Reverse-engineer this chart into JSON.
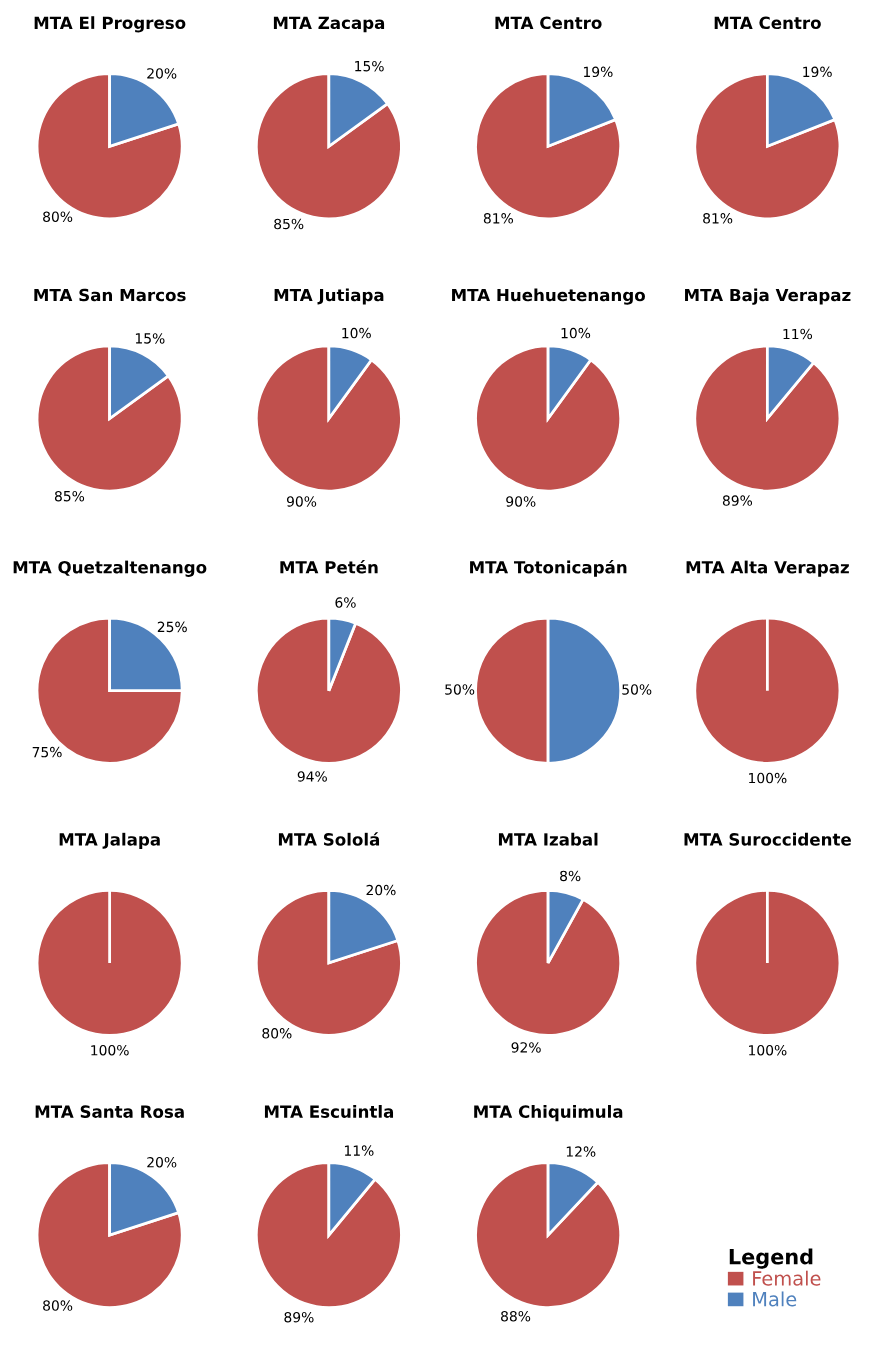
{
  "chart_data": [
    {
      "type": "pie",
      "title": "MTA El Progreso",
      "categories": [
        "Female",
        "Male"
      ],
      "values": [
        80,
        20
      ],
      "colors": [
        "#c0504d",
        "#4f81bd"
      ],
      "value_labels": [
        "80%",
        "20%"
      ],
      "legend": "bottom right",
      "legend_title": "Legend"
    },
    {
      "type": "pie",
      "title": "MTA Zacapa",
      "categories": [
        null,
        null
      ],
      "values": [
        85,
        15
      ],
      "colors": [
        "#c0504d",
        "#4f81bd"
      ],
      "value_labels": [
        "85%",
        "15%"
      ]
    },
    {
      "type": "pie",
      "title": "MTA Centro",
      "categories": [
        null,
        null
      ],
      "values": [
        81,
        19
      ],
      "colors": [
        "#c0504d",
        "#4f81bd"
      ],
      "value_labels": [
        "81%",
        "19%"
      ]
    },
    {
      "type": "pie",
      "title": "MTA Centro",
      "categories": [
        null,
        null
      ],
      "values": [
        81,
        19
      ],
      "colors": [
        "#c0504d",
        "#4f81bd"
      ],
      "value_labels": [
        "81%",
        "19%"
      ]
    },
    {
      "type": "pie",
      "title": "MTA San Marcos",
      "categories": [
        null,
        null
      ],
      "values": [
        85,
        15
      ],
      "colors": [
        "#c0504d",
        "#4f81bd"
      ],
      "value_labels": [
        "85%",
        "15%"
      ]
    },
    {
      "type": "pie",
      "title": "MTA Jutiapa",
      "categories": [
        null,
        null
      ],
      "values": [
        90,
        10
      ],
      "colors": [
        "#c0504d",
        "#4f81bd"
      ],
      "value_labels": [
        "90%",
        "10%"
      ]
    },
    {
      "type": "pie",
      "title": "MTA Huehuetenango",
      "categories": [
        null,
        null
      ],
      "values": [
        90,
        10
      ],
      "colors": [
        "#c0504d",
        "#4f81bd"
      ],
      "value_labels": [
        "90%",
        "10%"
      ]
    },
    {
      "type": "pie",
      "title": "MTA Baja Verapaz",
      "categories": [
        null,
        null
      ],
      "values": [
        89,
        11
      ],
      "colors": [
        "#c0504d",
        "#4f81bd"
      ],
      "value_labels": [
        "89%",
        "11%"
      ]
    },
    {
      "type": "pie",
      "title": "MTA Quetzaltenango",
      "categories": [
        null,
        null
      ],
      "values": [
        75,
        25
      ],
      "colors": [
        "#c0504d",
        "#4f81bd"
      ],
      "value_labels": [
        "75%",
        "25%"
      ]
    },
    {
      "type": "pie",
      "title": "MTA Petén",
      "categories": [
        null,
        null
      ],
      "values": [
        94,
        6
      ],
      "colors": [
        "#c0504d",
        "#4f81bd"
      ],
      "value_labels": [
        "94%",
        "6%"
      ]
    },
    {
      "type": "pie",
      "title": "MTA Totonicapán",
      "categories": [
        null,
        null
      ],
      "values": [
        50,
        50
      ],
      "colors": [
        "#c0504d",
        "#4f81bd"
      ],
      "value_labels": [
        "50%",
        "50%"
      ]
    },
    {
      "type": "pie",
      "title": "MTA Alta Verapaz",
      "categories": [
        null,
        null
      ],
      "values": [
        100,
        0
      ],
      "colors": [
        "#c0504d",
        "#4f81bd"
      ],
      "value_labels": [
        "100%",
        null
      ]
    },
    {
      "type": "pie",
      "title": "MTA Jalapa",
      "categories": [
        null,
        null
      ],
      "values": [
        100,
        0
      ],
      "colors": [
        "#c0504d",
        "#4f81bd"
      ],
      "value_labels": [
        "100%",
        null
      ]
    },
    {
      "type": "pie",
      "title": "MTA Sololá",
      "categories": [
        null,
        null
      ],
      "values": [
        80,
        20
      ],
      "colors": [
        "#c0504d",
        "#4f81bd"
      ],
      "value_labels": [
        "80%",
        "20%"
      ]
    },
    {
      "type": "pie",
      "title": "MTA Izabal",
      "categories": [
        null,
        null
      ],
      "values": [
        92,
        8
      ],
      "colors": [
        "#c0504d",
        "#4f81bd"
      ],
      "value_labels": [
        "92%",
        "8%"
      ]
    },
    {
      "type": "pie",
      "title": "MTA Suroccidente",
      "categories": [
        null,
        null
      ],
      "values": [
        100,
        0
      ],
      "colors": [
        "#c0504d",
        "#4f81bd"
      ],
      "value_labels": [
        "100%",
        null
      ]
    },
    {
      "type": "pie",
      "title": "MTA Santa Rosa",
      "categories": [
        null,
        null
      ],
      "values": [
        80,
        20
      ],
      "colors": [
        "#c0504d",
        "#4f81bd"
      ],
      "value_labels": [
        "80%",
        "20%"
      ]
    },
    {
      "type": "pie",
      "title": "MTA Escuintla",
      "categories": [
        null,
        null
      ],
      "values": [
        89,
        11
      ],
      "colors": [
        "#c0504d",
        "#4f81bd"
      ],
      "value_labels": [
        "89%",
        "11%"
      ]
    },
    {
      "type": "pie",
      "title": "MTA Chiquimula",
      "categories": [
        null,
        null
      ],
      "values": [
        88,
        12
      ],
      "colors": [
        "#c0504d",
        "#4f81bd"
      ],
      "value_labels": [
        "88%",
        "12%"
      ]
    }
  ]
}
